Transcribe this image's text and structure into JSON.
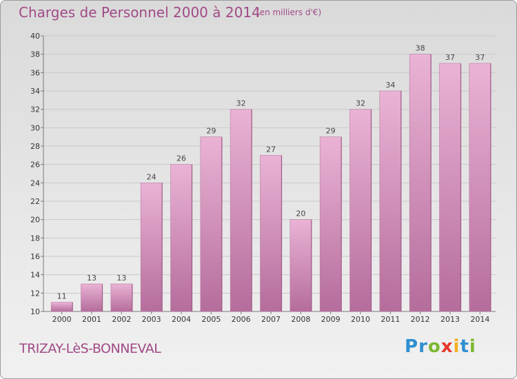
{
  "header": {
    "title": "Charges de Personnel 2000 à 2014",
    "subtitle": "(en milliers d'€)"
  },
  "footer": {
    "place": "TRIZAY-LèS-BONNEVAL",
    "brand_letters": [
      {
        "ch": "P",
        "color": "#2f8fd0"
      },
      {
        "ch": "r",
        "color": "#2f8fd0"
      },
      {
        "ch": "o",
        "color": "#7cb832"
      },
      {
        "ch": "x",
        "color": "#e8372c"
      },
      {
        "ch": "i",
        "color": "#f2b021"
      },
      {
        "ch": "t",
        "color": "#2f8fd0"
      },
      {
        "ch": "i",
        "color": "#7cb832"
      }
    ]
  },
  "colors": {
    "bar_light": "#eab3d5",
    "bar_dark": "#b56d9c",
    "title": "#a04a86"
  },
  "chart_data": {
    "type": "bar",
    "title": "Charges de Personnel 2000 à 2014",
    "subtitle": "(en milliers d'€)",
    "categories": [
      "2000",
      "2001",
      "2002",
      "2003",
      "2004",
      "2005",
      "2006",
      "2007",
      "2008",
      "2009",
      "2010",
      "2011",
      "2012",
      "2013",
      "2014"
    ],
    "values": [
      11,
      13,
      13,
      24,
      26,
      29,
      32,
      27,
      20,
      29,
      32,
      34,
      38,
      37,
      37
    ],
    "ylim": [
      10,
      40
    ],
    "yticks": [
      10,
      12,
      14,
      16,
      18,
      20,
      22,
      24,
      26,
      28,
      30,
      32,
      34,
      36,
      38,
      40
    ],
    "grid": true,
    "xlabel": "",
    "ylabel": ""
  }
}
